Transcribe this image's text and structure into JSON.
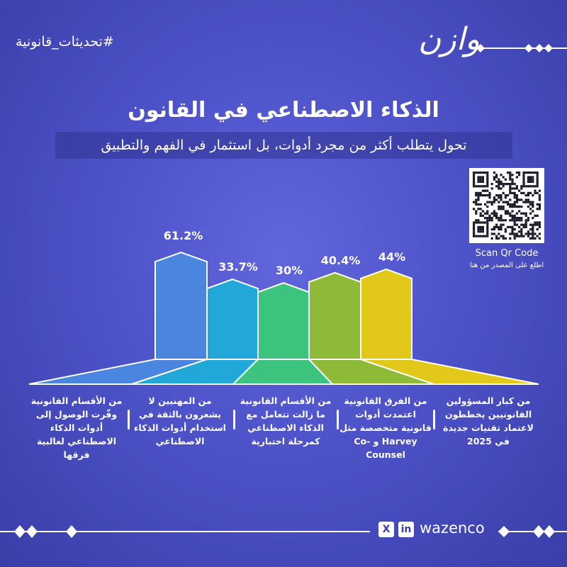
{
  "header": {
    "hashtag": "#تحديثات_قانونية",
    "logo_text": "وازن"
  },
  "title": "الذكاء الاصطناعي في القانون",
  "subtitle": "تحول يتطلب أكثر من مجرد أدوات، بل استثمار في الفهم والتطبيق",
  "qr": {
    "label": "Scan Qr Code",
    "sublabel": "اطلع على المصدر من هنا"
  },
  "chart_data": {
    "type": "bar",
    "categories": [
      "من الأقسام القانونية وفّرت الوصول إلى أدوات الذكاء الاصطناعي لغالبية فرقها",
      "من المهنيين لا يشعرون بالثقة في استخدام أدوات الذكاء الاصطناعي",
      "من الأقسام القانونية ما زالت تتعامل مع الذكاء الاصطناعي كمرحلة اختبارية",
      "من الفرق القانونية اعتمدت أدوات قانونية متخصصة مثل Harvey و Co-Counsel",
      "من كبار المسؤولين القانونيين يخططون لاعتماد تقنيات جديدة في 2025"
    ],
    "values": [
      61.2,
      33.7,
      30,
      40.4,
      44
    ],
    "labels": [
      "61.2%",
      "33.7%",
      "30%",
      "40.4%",
      "44%"
    ],
    "colors": [
      "#4a86e0",
      "#22a8d8",
      "#3cc47e",
      "#8fba38",
      "#e2c818"
    ],
    "unit": "%"
  },
  "footer": {
    "x_icon": "x-icon",
    "linkedin_icon": "linkedin-icon",
    "linkedin_label": "in",
    "x_label": "X",
    "brand": "wazenco"
  }
}
